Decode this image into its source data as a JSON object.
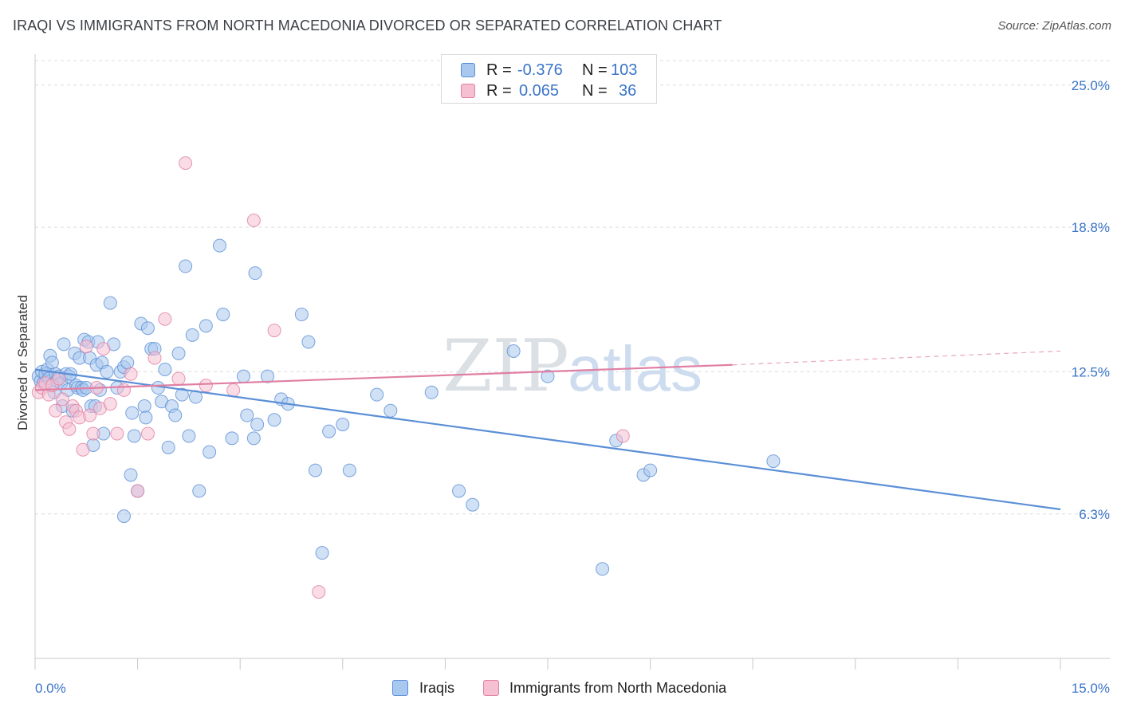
{
  "title": "IRAQI VS IMMIGRANTS FROM NORTH MACEDONIA DIVORCED OR SEPARATED CORRELATION CHART",
  "source": "Source: ZipAtlas.com",
  "watermark": {
    "zip": "ZIP",
    "atlas": "atlas"
  },
  "legend": {
    "rows": [
      {
        "r_label": "R =",
        "r_value": "-0.376",
        "n_label": "N =",
        "n_value": "103",
        "color": "#a9c8ef",
        "border": "#5b8fd6"
      },
      {
        "r_label": "R =",
        "r_value": "0.065",
        "n_label": "N =",
        "n_value": "36",
        "color": "#f6bfd2",
        "border": "#e07fa3"
      }
    ]
  },
  "bottom_legend": [
    {
      "label": "Iraqis",
      "color": "#a9c8ef",
      "border": "#5b8fd6"
    },
    {
      "label": "Immigrants from North Macedonia",
      "color": "#f6bfd2",
      "border": "#e07fa3"
    }
  ],
  "chart_data": {
    "type": "scatter",
    "title": "IRAQI VS IMMIGRANTS FROM NORTH MACEDONIA DIVORCED OR SEPARATED CORRELATION CHART",
    "xlabel": "",
    "ylabel": "Divorced or Separated",
    "xlim": [
      0,
      15
    ],
    "ylim": [
      0,
      26
    ],
    "x_tick_labels": [
      "0.0%",
      "15.0%"
    ],
    "y_ticks": [
      6.3,
      12.5,
      18.8,
      25.0
    ],
    "y_tick_labels": [
      "6.3%",
      "12.5%",
      "18.8%",
      "25.0%"
    ],
    "grid": "horizontal dashed",
    "legend_position": "top-center",
    "series": [
      {
        "name": "Iraqis",
        "color": "#5b8fd6",
        "fill": "#a9c8ef",
        "trend": {
          "x": [
            0,
            15
          ],
          "y": [
            12.6,
            6.5
          ],
          "style": "solid"
        },
        "points": [
          [
            0.05,
            12.3
          ],
          [
            0.08,
            12.1
          ],
          [
            0.1,
            12.5
          ],
          [
            0.12,
            12.0
          ],
          [
            0.15,
            12.4
          ],
          [
            0.18,
            12.6
          ],
          [
            0.2,
            12.2
          ],
          [
            0.22,
            13.2
          ],
          [
            0.25,
            12.9
          ],
          [
            0.28,
            11.6
          ],
          [
            0.3,
            12.4
          ],
          [
            0.32,
            12.1
          ],
          [
            0.35,
            12.3
          ],
          [
            0.38,
            12.0
          ],
          [
            0.4,
            11.0
          ],
          [
            0.42,
            13.7
          ],
          [
            0.45,
            12.4
          ],
          [
            0.48,
            11.7
          ],
          [
            0.5,
            12.3
          ],
          [
            0.52,
            12.4
          ],
          [
            0.55,
            10.8
          ],
          [
            0.58,
            13.3
          ],
          [
            0.6,
            11.9
          ],
          [
            0.62,
            11.8
          ],
          [
            0.65,
            13.1
          ],
          [
            0.68,
            11.8
          ],
          [
            0.7,
            11.7
          ],
          [
            0.72,
            13.9
          ],
          [
            0.75,
            11.8
          ],
          [
            0.78,
            13.8
          ],
          [
            0.8,
            13.1
          ],
          [
            0.82,
            11.0
          ],
          [
            0.85,
            9.3
          ],
          [
            0.88,
            11.0
          ],
          [
            0.9,
            12.8
          ],
          [
            0.92,
            13.8
          ],
          [
            0.95,
            11.7
          ],
          [
            0.98,
            12.9
          ],
          [
            1.0,
            9.8
          ],
          [
            1.05,
            12.5
          ],
          [
            1.1,
            15.5
          ],
          [
            1.15,
            13.7
          ],
          [
            1.2,
            11.8
          ],
          [
            1.25,
            12.5
          ],
          [
            1.3,
            12.7
          ],
          [
            1.35,
            12.9
          ],
          [
            1.4,
            8.0
          ],
          [
            1.42,
            10.7
          ],
          [
            1.45,
            9.7
          ],
          [
            1.5,
            7.3
          ],
          [
            1.55,
            14.6
          ],
          [
            1.6,
            11.0
          ],
          [
            1.62,
            10.5
          ],
          [
            1.65,
            14.4
          ],
          [
            1.7,
            13.5
          ],
          [
            1.75,
            13.5
          ],
          [
            1.8,
            11.8
          ],
          [
            1.85,
            11.2
          ],
          [
            1.9,
            12.6
          ],
          [
            1.95,
            9.2
          ],
          [
            2.0,
            11.0
          ],
          [
            2.05,
            10.6
          ],
          [
            2.1,
            13.3
          ],
          [
            2.15,
            11.5
          ],
          [
            2.2,
            17.1
          ],
          [
            2.25,
            9.7
          ],
          [
            2.3,
            14.1
          ],
          [
            2.35,
            11.4
          ],
          [
            2.4,
            7.3
          ],
          [
            2.5,
            14.5
          ],
          [
            2.55,
            9.0
          ],
          [
            2.7,
            18.0
          ],
          [
            2.75,
            15.0
          ],
          [
            2.88,
            9.6
          ],
          [
            3.05,
            12.3
          ],
          [
            3.1,
            10.6
          ],
          [
            3.2,
            9.6
          ],
          [
            3.22,
            16.8
          ],
          [
            3.25,
            10.2
          ],
          [
            3.4,
            12.3
          ],
          [
            3.5,
            10.4
          ],
          [
            3.6,
            11.3
          ],
          [
            3.7,
            11.1
          ],
          [
            3.9,
            15.0
          ],
          [
            4.0,
            13.8
          ],
          [
            4.1,
            8.2
          ],
          [
            4.2,
            4.6
          ],
          [
            4.3,
            9.9
          ],
          [
            4.5,
            10.2
          ],
          [
            4.6,
            8.2
          ],
          [
            5.0,
            11.5
          ],
          [
            5.2,
            10.8
          ],
          [
            5.8,
            11.6
          ],
          [
            6.2,
            7.3
          ],
          [
            6.4,
            6.7
          ],
          [
            7.0,
            13.4
          ],
          [
            7.5,
            12.3
          ],
          [
            8.3,
            3.9
          ],
          [
            8.5,
            9.5
          ],
          [
            8.9,
            8.0
          ],
          [
            9.0,
            8.2
          ],
          [
            10.8,
            8.6
          ],
          [
            1.3,
            6.2
          ]
        ]
      },
      {
        "name": "Immigrants from North Macedonia",
        "color": "#e07fa3",
        "fill": "#f6bfd2",
        "trend": {
          "x": [
            0,
            10.2
          ],
          "y": [
            11.7,
            12.8
          ],
          "style": "solid",
          "extension_x": [
            10.2,
            15
          ],
          "extension_y": [
            12.8,
            13.4
          ],
          "extension_style": "dashed"
        },
        "points": [
          [
            0.05,
            11.6
          ],
          [
            0.1,
            11.8
          ],
          [
            0.15,
            12.0
          ],
          [
            0.2,
            11.5
          ],
          [
            0.25,
            11.9
          ],
          [
            0.3,
            10.8
          ],
          [
            0.35,
            12.2
          ],
          [
            0.4,
            11.3
          ],
          [
            0.45,
            10.3
          ],
          [
            0.5,
            10.0
          ],
          [
            0.55,
            11.0
          ],
          [
            0.6,
            10.8
          ],
          [
            0.65,
            10.5
          ],
          [
            0.7,
            9.1
          ],
          [
            0.75,
            13.6
          ],
          [
            0.8,
            10.6
          ],
          [
            0.85,
            9.8
          ],
          [
            0.9,
            11.8
          ],
          [
            0.95,
            10.9
          ],
          [
            1.0,
            13.5
          ],
          [
            1.1,
            11.1
          ],
          [
            1.2,
            9.8
          ],
          [
            1.3,
            11.7
          ],
          [
            1.4,
            12.4
          ],
          [
            1.5,
            7.3
          ],
          [
            1.65,
            9.8
          ],
          [
            1.75,
            13.1
          ],
          [
            1.9,
            14.8
          ],
          [
            2.1,
            12.2
          ],
          [
            2.2,
            21.6
          ],
          [
            2.5,
            11.9
          ],
          [
            2.9,
            11.7
          ],
          [
            3.2,
            19.1
          ],
          [
            3.5,
            14.3
          ],
          [
            4.15,
            2.9
          ],
          [
            8.6,
            9.7
          ]
        ]
      }
    ]
  }
}
